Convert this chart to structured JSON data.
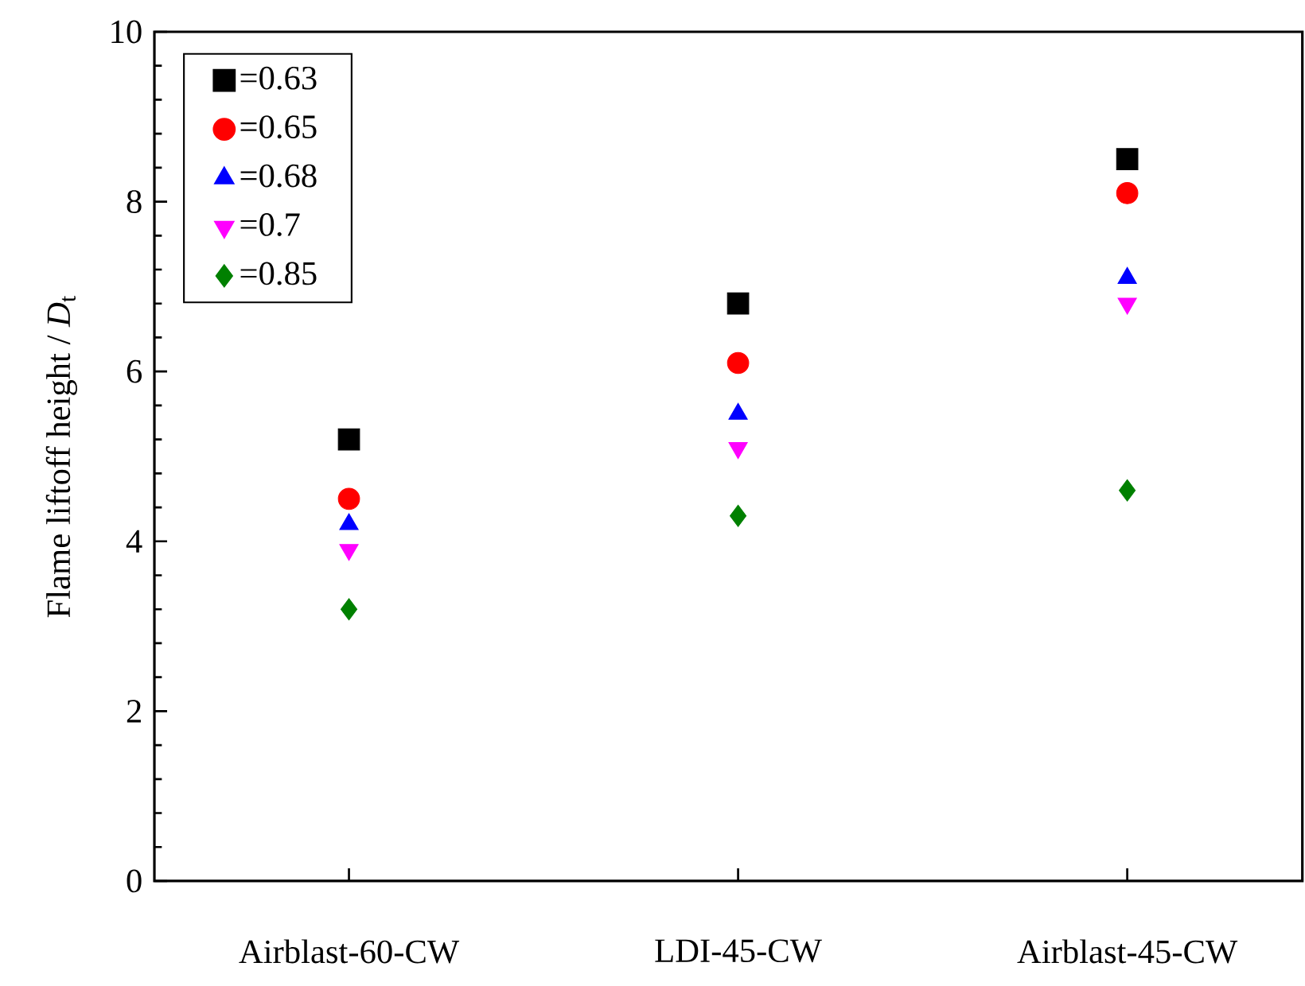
{
  "chart_data": {
    "type": "scatter",
    "ylabel": "Flame liftoff height / *D*$_{t}$",
    "categories": [
      "Airblast-60-CW",
      "LDI-45-CW",
      "Airblast-45-CW"
    ],
    "ylim": [
      0,
      10
    ],
    "yticks": [
      0,
      2,
      4,
      6,
      8,
      10
    ],
    "legend": "top left",
    "grid": false,
    "series": [
      {
        "name": "=0.63",
        "color": "#000000",
        "marker": "square",
        "values": [
          5.2,
          6.8,
          8.5
        ]
      },
      {
        "name": "=0.65",
        "color": "#ff0000",
        "marker": "circle",
        "values": [
          4.5,
          6.1,
          8.1
        ]
      },
      {
        "name": "=0.68",
        "color": "#0000ff",
        "marker": "triangle",
        "values": [
          4.2,
          5.5,
          7.1
        ]
      },
      {
        "name": "=0.7",
        "color": "#ff00ff",
        "marker": "triangle-down",
        "values": [
          3.9,
          5.1,
          6.8
        ]
      },
      {
        "name": "=0.85",
        "color": "#008000",
        "marker": "diamond",
        "values": [
          3.2,
          4.3,
          4.6
        ]
      }
    ]
  }
}
